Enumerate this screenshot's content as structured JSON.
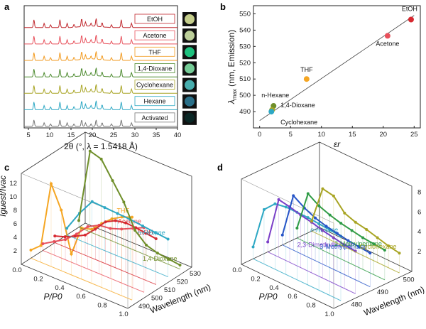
{
  "panels": {
    "a": "a",
    "b": "b",
    "c": "c",
    "d": "d"
  },
  "chart_data": [
    {
      "panel": "a",
      "type": "line",
      "xlabel": "2θ (°, λ = 1.5418 Å)",
      "xlim": [
        4,
        40
      ],
      "xticks": [
        "5",
        "10",
        "15",
        "20",
        "25",
        "30",
        "35",
        "40"
      ],
      "series": [
        {
          "name": "EtOH",
          "color": "#c0272d"
        },
        {
          "name": "Acetone",
          "color": "#e8505b"
        },
        {
          "name": "THF",
          "color": "#f29a1f"
        },
        {
          "name": "1,4-Dioxane",
          "color": "#4c8a2e"
        },
        {
          "name": "Cyclohexane",
          "color": "#a8a423"
        },
        {
          "name": "Hexane",
          "color": "#2ea8c4"
        },
        {
          "name": "Activated",
          "color": "#777777"
        }
      ],
      "peaks": [
        6.3,
        8.7,
        10.2,
        12.4,
        14.1,
        15.7,
        17.5,
        18.4,
        19.7,
        20.9,
        22.3,
        24.5,
        26.8,
        29.2
      ]
    },
    {
      "panel": "b",
      "type": "scatter",
      "xlabel": "εr",
      "ylabel_main": "λ",
      "ylabel_sub": "max",
      "ylabel_rest": " (nm, Emission)",
      "xlim": [
        -1,
        26
      ],
      "ylim": [
        480,
        555
      ],
      "xticks": [
        0,
        5,
        10,
        15,
        20,
        25
      ],
      "yticks": [
        490,
        500,
        510,
        520,
        530,
        540,
        550
      ],
      "points": [
        {
          "label": "EtOH",
          "x": 24.5,
          "y": 546.5,
          "color": "#d7282f"
        },
        {
          "label": "Acetone",
          "x": 20.7,
          "y": 536.5,
          "color": "#e8505b"
        },
        {
          "label": "THF",
          "x": 7.6,
          "y": 510,
          "color": "#f5a623"
        },
        {
          "label": "1,4-Dioxane",
          "x": 2.25,
          "y": 493.5,
          "color": "#6f8f2a"
        },
        {
          "label": "Cyclohexane",
          "x": 2.0,
          "y": 491,
          "color": "#a8a423"
        },
        {
          "label": "n-Hexane",
          "x": 1.9,
          "y": 490,
          "color": "#2ea8c4"
        }
      ],
      "fit": {
        "x": [
          0,
          25
        ],
        "y": [
          484.5,
          549
        ]
      }
    },
    {
      "panel": "c",
      "type": "line",
      "xlabel": "P/P0",
      "ylabel": "Iguest/Ivac",
      "zlabel": "Wavelength (nm)",
      "xticks": [
        "0.0",
        "0.2",
        "0.4",
        "0.6",
        "0.8",
        "1.0"
      ],
      "yticks": [
        "2",
        "4",
        "6",
        "8",
        "10",
        "12"
      ],
      "zticks": [
        "490",
        "500",
        "510",
        "520",
        "530"
      ],
      "series": [
        {
          "name": "THF",
          "color": "#f5a623",
          "values": [
            1.2,
            2.5,
            12.3,
            9.0,
            3.1,
            7.6,
            8.0,
            9.5,
            10.8,
            11.7,
            12.3
          ]
        },
        {
          "name": "Acetone",
          "color": "#e8505b",
          "values": [
            1.0,
            2.0,
            3.0,
            4.5,
            6.3,
            7.2,
            7.4,
            8.0,
            8.8,
            9.6
          ]
        },
        {
          "name": "EtOH",
          "color": "#d7282f",
          "values": [
            1.0,
            1.5,
            2.2,
            3.0,
            4.5,
            6.2,
            7.0,
            7.3,
            7.2,
            7.0,
            6.8
          ]
        },
        {
          "name": "n-Hexane",
          "color": "#2ea8c4",
          "values": [
            1.0,
            4.0,
            6.5,
            6.4,
            6.3,
            6.2,
            6.0,
            5.8,
            5.6
          ]
        },
        {
          "name": "1,4-Dioxane",
          "color": "#6f8f2a",
          "values": [
            1.0,
            12.0,
            11.5,
            9.0,
            6.5,
            3.0,
            1.5,
            1.0,
            0.8,
            0.6
          ]
        }
      ]
    },
    {
      "panel": "d",
      "type": "line",
      "xlabel": "P/P0",
      "ylabel": "Iguest/Ivac",
      "zlabel": "Wavelength (nm)",
      "xticks": [
        "0.0",
        "0.2",
        "0.4",
        "0.6",
        "0.8",
        "1.0"
      ],
      "yticks": [
        "2",
        "4",
        "6",
        "8"
      ],
      "zticks": [
        "480",
        "490",
        "500"
      ],
      "series": [
        {
          "name": "n-Hexane",
          "color": "#2ea8c4",
          "values": [
            1.2,
            5.5,
            6.6,
            6.8,
            6.8,
            6.8,
            6.7,
            6.6,
            6.5
          ]
        },
        {
          "name": "2,3-Dimethylbutane",
          "color": "#7a3fc8",
          "values": [
            1.0,
            5.8,
            5.6,
            5.3,
            5.1,
            4.8,
            4.6,
            4.4,
            4.3
          ]
        },
        {
          "name": "3-Methylpentane",
          "color": "#2554c7",
          "values": [
            1.0,
            5.5,
            4.8,
            4.3,
            4.0,
            3.8,
            3.6,
            3.5,
            3.4
          ]
        },
        {
          "name": "2-Methylpentane",
          "color": "#2e9b45",
          "values": [
            1.0,
            5.0,
            4.3,
            3.9,
            3.6,
            3.4,
            3.2,
            3.1,
            3.0
          ]
        },
        {
          "name": "Cyclohexane",
          "color": "#a8a423",
          "values": [
            1.0,
            4.8,
            4.6,
            3.4,
            3.0,
            2.8,
            2.5,
            2.2,
            2.0
          ]
        }
      ]
    }
  ]
}
